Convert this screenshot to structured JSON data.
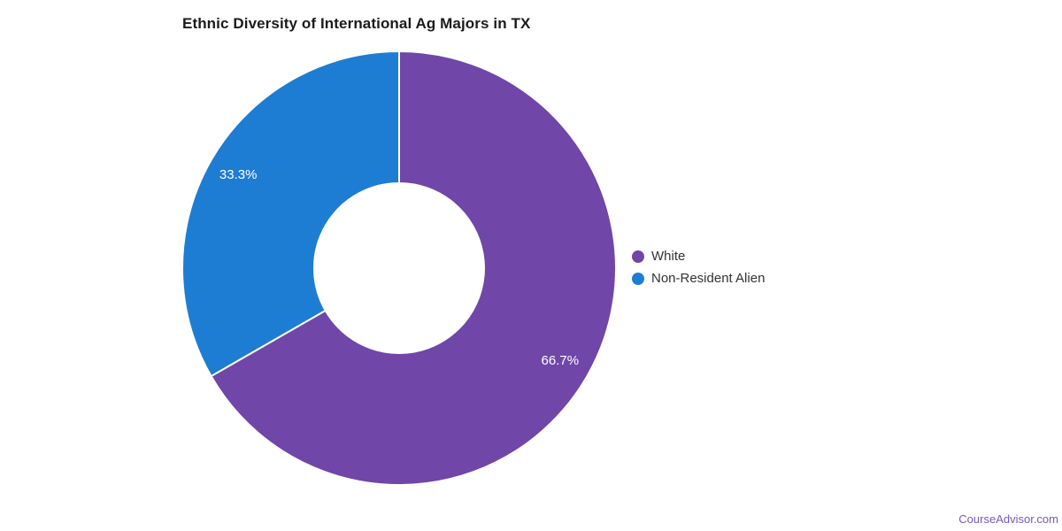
{
  "page": {
    "background": "#ffffff"
  },
  "chart_data": {
    "type": "pie",
    "title": "Ethnic Diversity of International Ag Majors in TX",
    "donut": true,
    "inner_radius_pct": 39,
    "start_angle_deg": 0,
    "direction": "clockwise",
    "legend_position": "right",
    "data_label_color": "#ffffff",
    "slice_border_color": "#ffffff",
    "slices": [
      {
        "label": "White",
        "value": 66.7,
        "display": "66.7%",
        "color": "#7046a9"
      },
      {
        "label": "Non-Resident Alien",
        "value": 33.3,
        "display": "33.3%",
        "color": "#1d7dd2"
      }
    ]
  },
  "footer": {
    "brand": "CourseAdvisor.com",
    "color": "#7659bd"
  }
}
